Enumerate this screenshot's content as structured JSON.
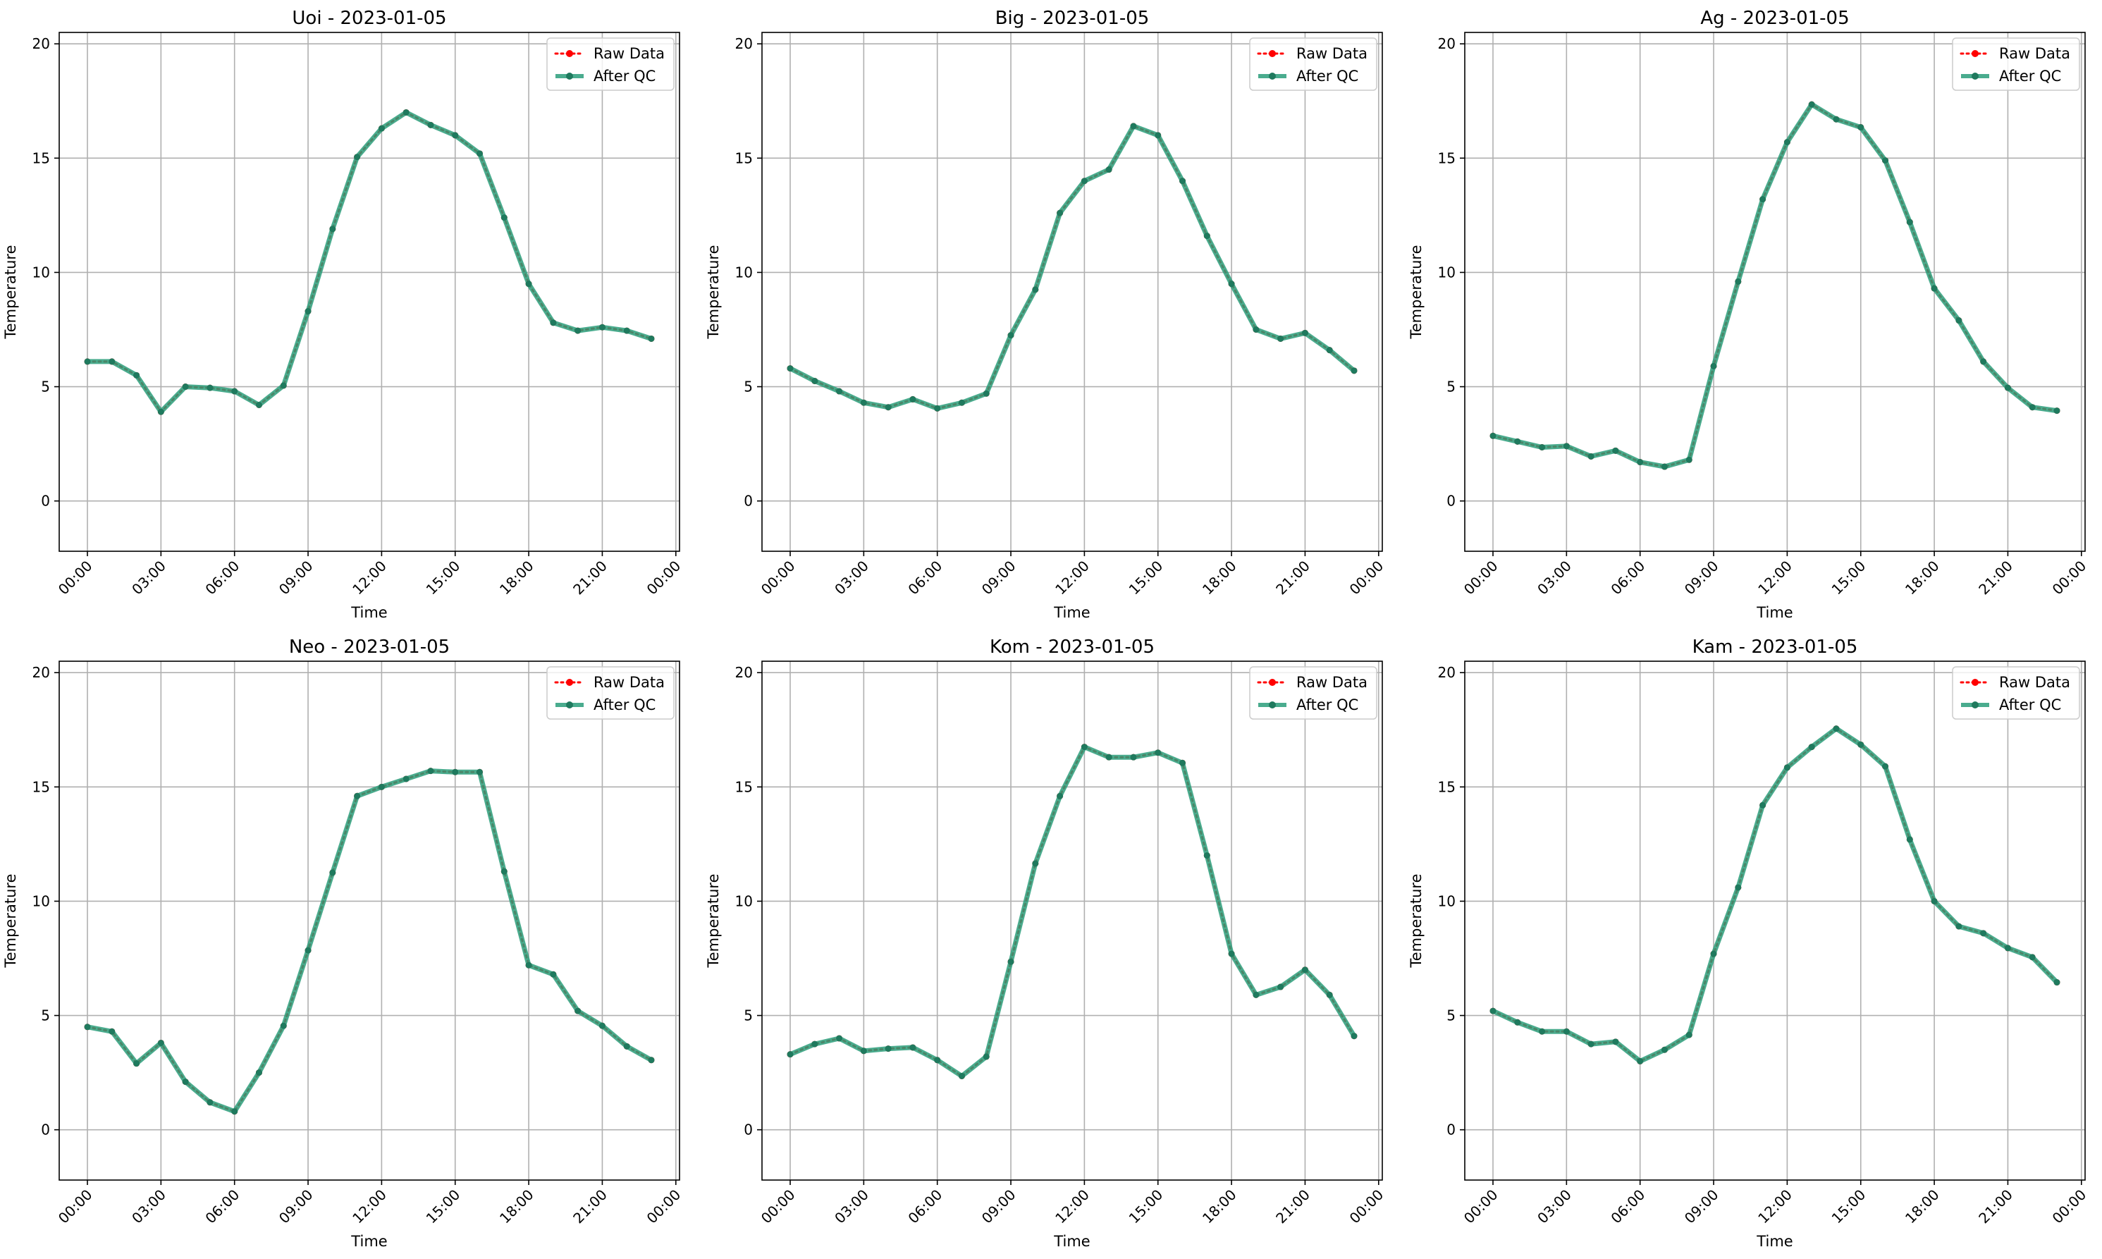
{
  "colors": {
    "raw": "#ff0000",
    "qc": "#2a9d7a",
    "qc_marker": "#1f7a5e",
    "grid": "#b0b0b0",
    "legend_border": "#cccccc"
  },
  "legend": {
    "raw_label": "Raw Data",
    "qc_label": "After QC"
  },
  "chart_data": [
    {
      "type": "line",
      "title": "Uoi - 2023-01-05",
      "xlabel": "Time",
      "ylabel": "Temperature",
      "ylim": [
        -2.2,
        20.5
      ],
      "xlim": [
        "00:00",
        "00:00"
      ],
      "yticks": [
        0,
        5,
        10,
        15,
        20
      ],
      "xticks": [
        "00:00",
        "03:00",
        "06:00",
        "09:00",
        "12:00",
        "15:00",
        "18:00",
        "21:00",
        "00:00"
      ],
      "grid": true,
      "legend_position": "upper right",
      "x": [
        "00:00",
        "01:00",
        "02:00",
        "03:00",
        "04:00",
        "05:00",
        "06:00",
        "07:00",
        "08:00",
        "09:00",
        "10:00",
        "11:00",
        "12:00",
        "13:00",
        "14:00",
        "15:00",
        "16:00",
        "17:00",
        "18:00",
        "19:00",
        "20:00",
        "21:00",
        "22:00",
        "23:00"
      ],
      "series": [
        {
          "name": "Raw Data",
          "values": [
            6.1,
            6.1,
            5.5,
            3.9,
            5.0,
            4.95,
            4.8,
            4.2,
            5.05,
            8.3,
            11.9,
            15.05,
            16.3,
            17.0,
            16.45,
            16.0,
            15.2,
            12.4,
            9.5,
            7.8,
            7.45,
            7.6,
            7.45,
            7.1
          ]
        },
        {
          "name": "After QC",
          "values": [
            6.1,
            6.1,
            5.5,
            3.9,
            5.0,
            4.95,
            4.8,
            4.2,
            5.05,
            8.3,
            11.9,
            15.05,
            16.3,
            17.0,
            16.45,
            16.0,
            15.2,
            12.4,
            9.5,
            7.8,
            7.45,
            7.6,
            7.45,
            7.1
          ]
        }
      ]
    },
    {
      "type": "line",
      "title": "Big - 2023-01-05",
      "xlabel": "Time",
      "ylabel": "Temperature",
      "ylim": [
        -2.2,
        20.5
      ],
      "xlim": [
        "00:00",
        "00:00"
      ],
      "yticks": [
        0,
        5,
        10,
        15,
        20
      ],
      "xticks": [
        "00:00",
        "03:00",
        "06:00",
        "09:00",
        "12:00",
        "15:00",
        "18:00",
        "21:00",
        "00:00"
      ],
      "grid": true,
      "legend_position": "upper right",
      "x": [
        "00:00",
        "01:00",
        "02:00",
        "03:00",
        "04:00",
        "05:00",
        "06:00",
        "07:00",
        "08:00",
        "09:00",
        "10:00",
        "11:00",
        "12:00",
        "13:00",
        "14:00",
        "15:00",
        "16:00",
        "17:00",
        "18:00",
        "19:00",
        "20:00",
        "21:00",
        "22:00",
        "23:00"
      ],
      "series": [
        {
          "name": "Raw Data",
          "values": [
            5.8,
            5.25,
            4.8,
            4.3,
            4.1,
            4.45,
            4.05,
            4.3,
            4.7,
            7.25,
            9.25,
            12.6,
            14.0,
            14.5,
            16.4,
            16.0,
            14.0,
            11.6,
            9.5,
            7.5,
            7.1,
            7.35,
            6.6,
            5.7
          ]
        },
        {
          "name": "After QC",
          "values": [
            5.8,
            5.25,
            4.8,
            4.3,
            4.1,
            4.45,
            4.05,
            4.3,
            4.7,
            7.25,
            9.25,
            12.6,
            14.0,
            14.5,
            16.4,
            16.0,
            14.0,
            11.6,
            9.5,
            7.5,
            7.1,
            7.35,
            6.6,
            5.7
          ]
        }
      ]
    },
    {
      "type": "line",
      "title": "Ag - 2023-01-05",
      "xlabel": "Time",
      "ylabel": "Temperature",
      "ylim": [
        -2.2,
        20.5
      ],
      "xlim": [
        "00:00",
        "00:00"
      ],
      "yticks": [
        0,
        5,
        10,
        15,
        20
      ],
      "xticks": [
        "00:00",
        "03:00",
        "06:00",
        "09:00",
        "12:00",
        "15:00",
        "18:00",
        "21:00",
        "00:00"
      ],
      "grid": true,
      "legend_position": "upper right",
      "x": [
        "00:00",
        "01:00",
        "02:00",
        "03:00",
        "04:00",
        "05:00",
        "06:00",
        "07:00",
        "08:00",
        "09:00",
        "10:00",
        "11:00",
        "12:00",
        "13:00",
        "14:00",
        "15:00",
        "16:00",
        "17:00",
        "18:00",
        "19:00",
        "20:00",
        "21:00",
        "22:00",
        "23:00"
      ],
      "series": [
        {
          "name": "Raw Data",
          "values": [
            2.85,
            2.6,
            2.35,
            2.4,
            1.95,
            2.2,
            1.7,
            1.5,
            1.8,
            5.9,
            9.6,
            13.2,
            15.7,
            17.35,
            16.7,
            16.35,
            14.9,
            12.2,
            9.3,
            7.9,
            6.1,
            4.95,
            4.1,
            3.95
          ]
        },
        {
          "name": "After QC",
          "values": [
            2.85,
            2.6,
            2.35,
            2.4,
            1.95,
            2.2,
            1.7,
            1.5,
            1.8,
            5.9,
            9.6,
            13.2,
            15.7,
            17.35,
            16.7,
            16.35,
            14.9,
            12.2,
            9.3,
            7.9,
            6.1,
            4.95,
            4.1,
            3.95
          ]
        }
      ]
    },
    {
      "type": "line",
      "title": "Neo - 2023-01-05",
      "xlabel": "Time",
      "ylabel": "Temperature",
      "ylim": [
        -2.2,
        20.5
      ],
      "xlim": [
        "00:00",
        "00:00"
      ],
      "yticks": [
        0,
        5,
        10,
        15,
        20
      ],
      "xticks": [
        "00:00",
        "03:00",
        "06:00",
        "09:00",
        "12:00",
        "15:00",
        "18:00",
        "21:00",
        "00:00"
      ],
      "grid": true,
      "legend_position": "upper right",
      "x": [
        "00:00",
        "01:00",
        "02:00",
        "03:00",
        "04:00",
        "05:00",
        "06:00",
        "07:00",
        "08:00",
        "09:00",
        "10:00",
        "11:00",
        "12:00",
        "13:00",
        "14:00",
        "15:00",
        "16:00",
        "17:00",
        "18:00",
        "19:00",
        "20:00",
        "21:00",
        "22:00",
        "23:00"
      ],
      "series": [
        {
          "name": "Raw Data",
          "values": [
            4.5,
            4.3,
            2.9,
            3.8,
            2.1,
            1.2,
            0.8,
            2.5,
            4.55,
            7.85,
            11.25,
            14.6,
            15.0,
            15.35,
            15.7,
            15.65,
            15.65,
            11.3,
            7.2,
            6.8,
            5.2,
            4.55,
            3.65,
            3.05
          ]
        },
        {
          "name": "After QC",
          "values": [
            4.5,
            4.3,
            2.9,
            3.8,
            2.1,
            1.2,
            0.8,
            2.5,
            4.55,
            7.85,
            11.25,
            14.6,
            15.0,
            15.35,
            15.7,
            15.65,
            15.65,
            11.3,
            7.2,
            6.8,
            5.2,
            4.55,
            3.65,
            3.05
          ]
        }
      ]
    },
    {
      "type": "line",
      "title": "Kom - 2023-01-05",
      "xlabel": "Time",
      "ylabel": "Temperature",
      "ylim": [
        -2.2,
        20.5
      ],
      "xlim": [
        "00:00",
        "00:00"
      ],
      "yticks": [
        0,
        5,
        10,
        15,
        20
      ],
      "xticks": [
        "00:00",
        "03:00",
        "06:00",
        "09:00",
        "12:00",
        "15:00",
        "18:00",
        "21:00",
        "00:00"
      ],
      "grid": true,
      "legend_position": "upper right",
      "x": [
        "00:00",
        "01:00",
        "02:00",
        "03:00",
        "04:00",
        "05:00",
        "06:00",
        "07:00",
        "08:00",
        "09:00",
        "10:00",
        "11:00",
        "12:00",
        "13:00",
        "14:00",
        "15:00",
        "16:00",
        "17:00",
        "18:00",
        "19:00",
        "20:00",
        "21:00",
        "22:00",
        "23:00"
      ],
      "series": [
        {
          "name": "Raw Data",
          "values": [
            3.3,
            3.75,
            4.0,
            3.45,
            3.55,
            3.6,
            3.05,
            2.35,
            3.2,
            7.35,
            11.65,
            14.6,
            16.75,
            16.3,
            16.3,
            16.5,
            16.05,
            12.0,
            7.7,
            5.9,
            6.25,
            7.0,
            5.9,
            4.1
          ]
        },
        {
          "name": "After QC",
          "values": [
            3.3,
            3.75,
            4.0,
            3.45,
            3.55,
            3.6,
            3.05,
            2.35,
            3.2,
            7.35,
            11.65,
            14.6,
            16.75,
            16.3,
            16.3,
            16.5,
            16.05,
            12.0,
            7.7,
            5.9,
            6.25,
            7.0,
            5.9,
            4.1
          ]
        }
      ]
    },
    {
      "type": "line",
      "title": "Kam - 2023-01-05",
      "xlabel": "Time",
      "ylabel": "Temperature",
      "ylim": [
        -2.2,
        20.5
      ],
      "xlim": [
        "00:00",
        "00:00"
      ],
      "yticks": [
        0,
        5,
        10,
        15,
        20
      ],
      "xticks": [
        "00:00",
        "03:00",
        "06:00",
        "09:00",
        "12:00",
        "15:00",
        "18:00",
        "21:00",
        "00:00"
      ],
      "grid": true,
      "legend_position": "upper right",
      "x": [
        "00:00",
        "01:00",
        "02:00",
        "03:00",
        "04:00",
        "05:00",
        "06:00",
        "07:00",
        "08:00",
        "09:00",
        "10:00",
        "11:00",
        "12:00",
        "13:00",
        "14:00",
        "15:00",
        "16:00",
        "17:00",
        "18:00",
        "19:00",
        "20:00",
        "21:00",
        "22:00",
        "23:00"
      ],
      "series": [
        {
          "name": "Raw Data",
          "values": [
            5.2,
            4.7,
            4.3,
            4.3,
            3.75,
            3.85,
            3.0,
            3.5,
            4.15,
            7.7,
            10.6,
            14.2,
            15.85,
            16.75,
            17.55,
            16.85,
            15.9,
            12.7,
            10.0,
            8.9,
            8.6,
            7.95,
            7.55,
            6.45
          ]
        },
        {
          "name": "After QC",
          "values": [
            5.2,
            4.7,
            4.3,
            4.3,
            3.75,
            3.85,
            3.0,
            3.5,
            4.15,
            7.7,
            10.6,
            14.2,
            15.85,
            16.75,
            17.55,
            16.85,
            15.9,
            12.7,
            10.0,
            8.9,
            8.6,
            7.95,
            7.55,
            6.45
          ]
        }
      ]
    }
  ]
}
